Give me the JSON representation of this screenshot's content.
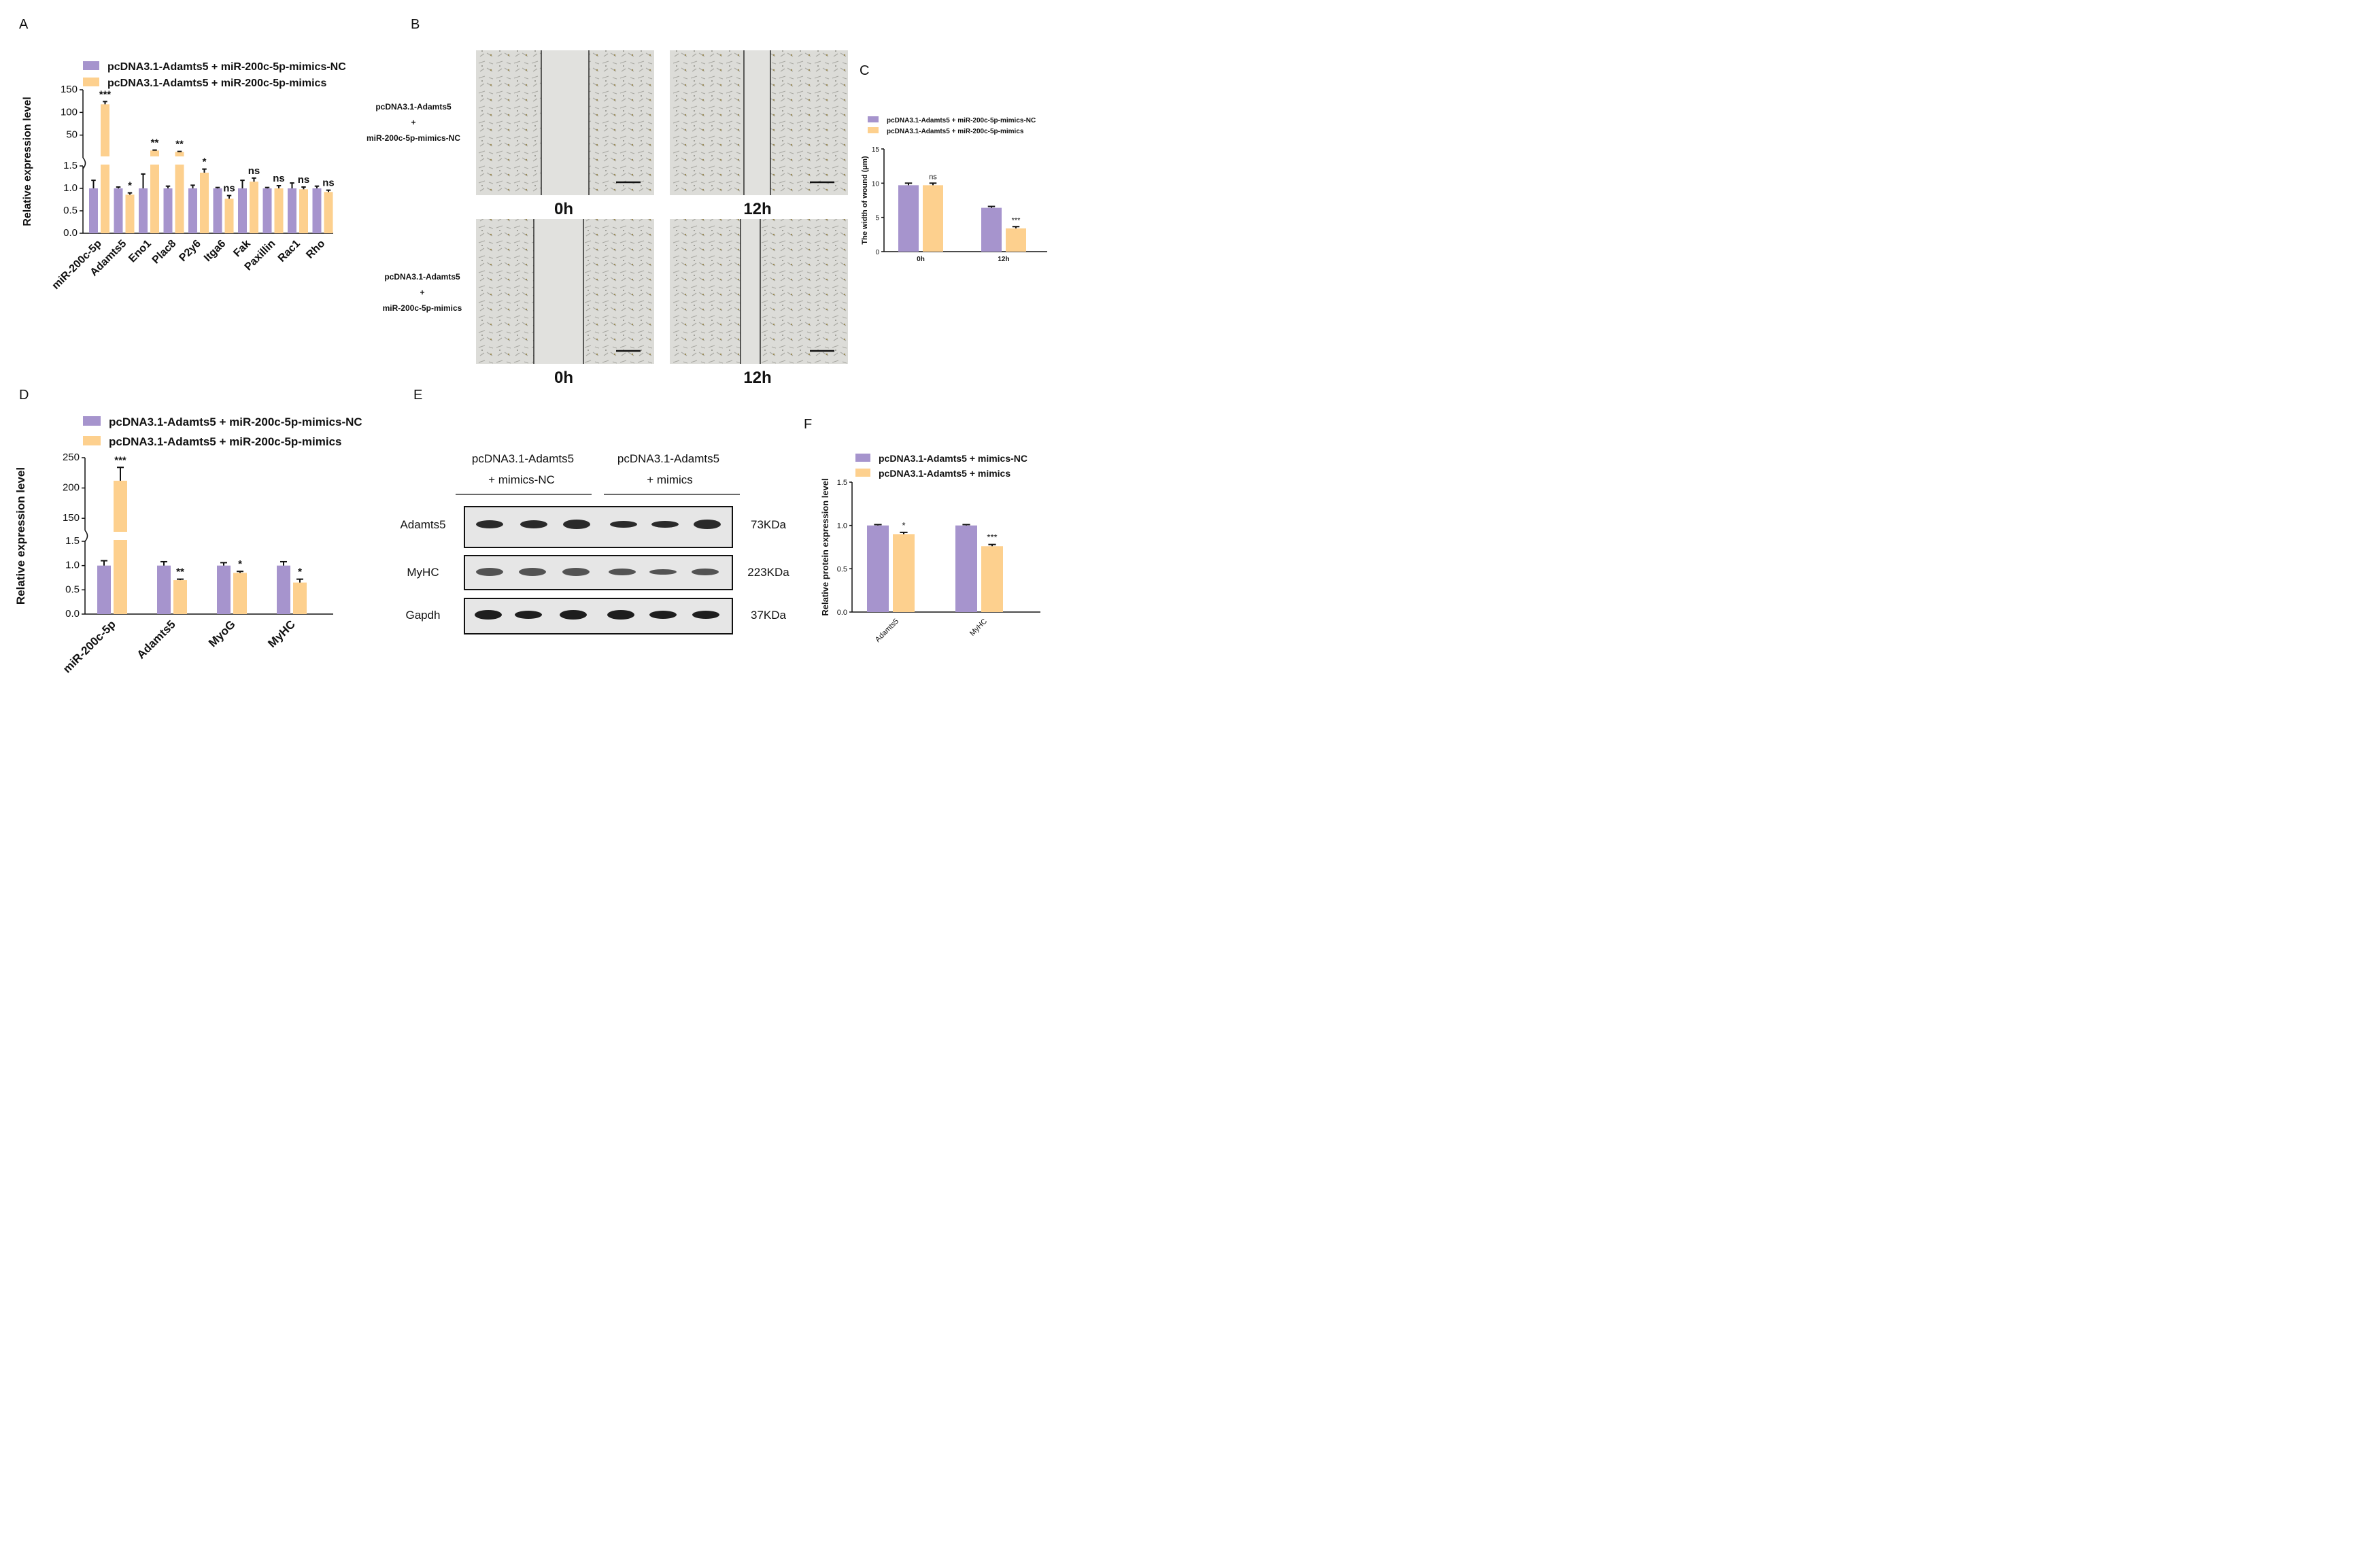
{
  "colors": {
    "nc": "#a694cd",
    "mimics": "#fdd08e",
    "axis": "#111111",
    "blot_bg": "#e6e6e6"
  },
  "panels": {
    "A": {
      "label": "A"
    },
    "B": {
      "label": "B",
      "row1_label": [
        "pcDNA3.1-Adamts5",
        "+",
        "miR-200c-5p-mimics-NC"
      ],
      "row2_label": [
        "pcDNA3.1-Adamts5",
        "+",
        "miR-200c-5p-mimics"
      ],
      "time_labels": [
        "0h",
        "12h",
        "0h",
        "12h"
      ]
    },
    "C": {
      "label": "C"
    },
    "D": {
      "label": "D"
    },
    "E": {
      "label": "E",
      "group1": [
        "pcDNA3.1-Adamts5",
        "+ mimics-NC"
      ],
      "group2": [
        "pcDNA3.1-Adamts5",
        "+ mimics"
      ],
      "rows": [
        {
          "name": "Adamts5",
          "size": "73KDa"
        },
        {
          "name": "MyHC",
          "size": "223KDa"
        },
        {
          "name": "Gapdh",
          "size": "37KDa"
        }
      ]
    },
    "F": {
      "label": "F"
    }
  },
  "chart_data": [
    {
      "panel": "A",
      "type": "bar",
      "legend": [
        "pcDNA3.1-Adamts5 + miR-200c-5p-mimics-NC",
        "pcDNA3.1-Adamts5 + miR-200c-5p-mimics"
      ],
      "ylabel": "Relative expression level",
      "categories": [
        "miR-200c-5p",
        "Adamts5",
        "Eno1",
        "Plac8",
        "P2y6",
        "Itga6",
        "Fak",
        "Paxillin",
        "Rac1",
        "Rho"
      ],
      "series": [
        {
          "name": "pcDNA3.1-Adamts5 + miR-200c-5p-mimics-NC",
          "values": [
            1.0,
            1.0,
            1.0,
            1.0,
            1.0,
            1.0,
            1.0,
            1.0,
            1.0,
            1.0
          ],
          "errors": [
            0.18,
            0.03,
            0.32,
            0.05,
            0.07,
            0.02,
            0.18,
            0.02,
            0.12,
            0.05
          ]
        },
        {
          "name": "pcDNA3.1-Adamts5 + miR-200c-5p-mimics",
          "values": [
            118,
            0.86,
            16,
            13,
            1.35,
            0.77,
            1.15,
            1.0,
            0.98,
            0.92
          ],
          "errors": [
            6,
            0.04,
            1,
            1,
            0.08,
            0.07,
            0.08,
            0.06,
            0.05,
            0.04
          ]
        }
      ],
      "significance": [
        "***",
        "*",
        "**",
        "**",
        "*",
        "ns",
        "ns",
        "ns",
        "ns",
        "ns"
      ],
      "yticks_lower": [
        "0.0",
        "0.5",
        "1.0",
        "1.5"
      ],
      "yticks_upper": [
        "50",
        "100",
        "150"
      ]
    },
    {
      "panel": "C",
      "type": "bar",
      "legend": [
        "pcDNA3.1-Adamts5 + miR-200c-5p-mimics-NC",
        "pcDNA3.1-Adamts5 + miR-200c-5p-mimics"
      ],
      "ylabel": "The width of wound (μm)",
      "categories": [
        "0h",
        "12h"
      ],
      "series": [
        {
          "name": "pcDNA3.1-Adamts5 + miR-200c-5p-mimics-NC",
          "values": [
            9.7,
            6.4
          ],
          "errors": [
            0.3,
            0.2
          ]
        },
        {
          "name": "pcDNA3.1-Adamts5 + miR-200c-5p-mimics",
          "values": [
            9.7,
            3.4
          ],
          "errors": [
            0.3,
            0.25
          ]
        }
      ],
      "significance": [
        "ns",
        "***"
      ],
      "ylim": [
        0,
        15
      ],
      "yticks": [
        "0",
        "5",
        "10",
        "15"
      ]
    },
    {
      "panel": "D",
      "type": "bar",
      "legend": [
        "pcDNA3.1-Adamts5 + miR-200c-5p-mimics-NC",
        "pcDNA3.1-Adamts5 + miR-200c-5p-mimics"
      ],
      "ylabel": "Relative expression level",
      "categories": [
        "miR-200c-5p",
        "Adamts5",
        "MyoG",
        "MyHC"
      ],
      "series": [
        {
          "name": "pcDNA3.1-Adamts5 + miR-200c-5p-mimics-NC",
          "values": [
            1.0,
            1.0,
            1.0,
            1.0
          ],
          "errors": [
            0.1,
            0.08,
            0.06,
            0.08
          ]
        },
        {
          "name": "pcDNA3.1-Adamts5 + miR-200c-5p-mimics",
          "values": [
            212,
            0.7,
            0.85,
            0.65
          ],
          "errors": [
            22,
            0.02,
            0.03,
            0.07
          ]
        }
      ],
      "significance": [
        "***",
        "**",
        "*",
        "*"
      ],
      "yticks_lower": [
        "0.0",
        "0.5",
        "1.0",
        "1.5"
      ],
      "yticks_upper": [
        "150",
        "200",
        "250"
      ]
    },
    {
      "panel": "F",
      "type": "bar",
      "legend": [
        "pcDNA3.1-Adamts5 + mimics-NC",
        "pcDNA3.1-Adamts5 + mimics"
      ],
      "ylabel": "Relative protein expression level",
      "categories": [
        "Adamts5",
        "MyHC"
      ],
      "series": [
        {
          "name": "pcDNA3.1-Adamts5 + mimics-NC",
          "values": [
            1.0,
            1.0
          ],
          "errors": [
            0.01,
            0.01
          ]
        },
        {
          "name": "pcDNA3.1-Adamts5 + mimics",
          "values": [
            0.9,
            0.76
          ],
          "errors": [
            0.02,
            0.02
          ]
        }
      ],
      "significance": [
        "*",
        "***"
      ],
      "ylim": [
        0,
        1.5
      ],
      "yticks": [
        "0.0",
        "0.5",
        "1.0",
        "1.5"
      ]
    }
  ]
}
